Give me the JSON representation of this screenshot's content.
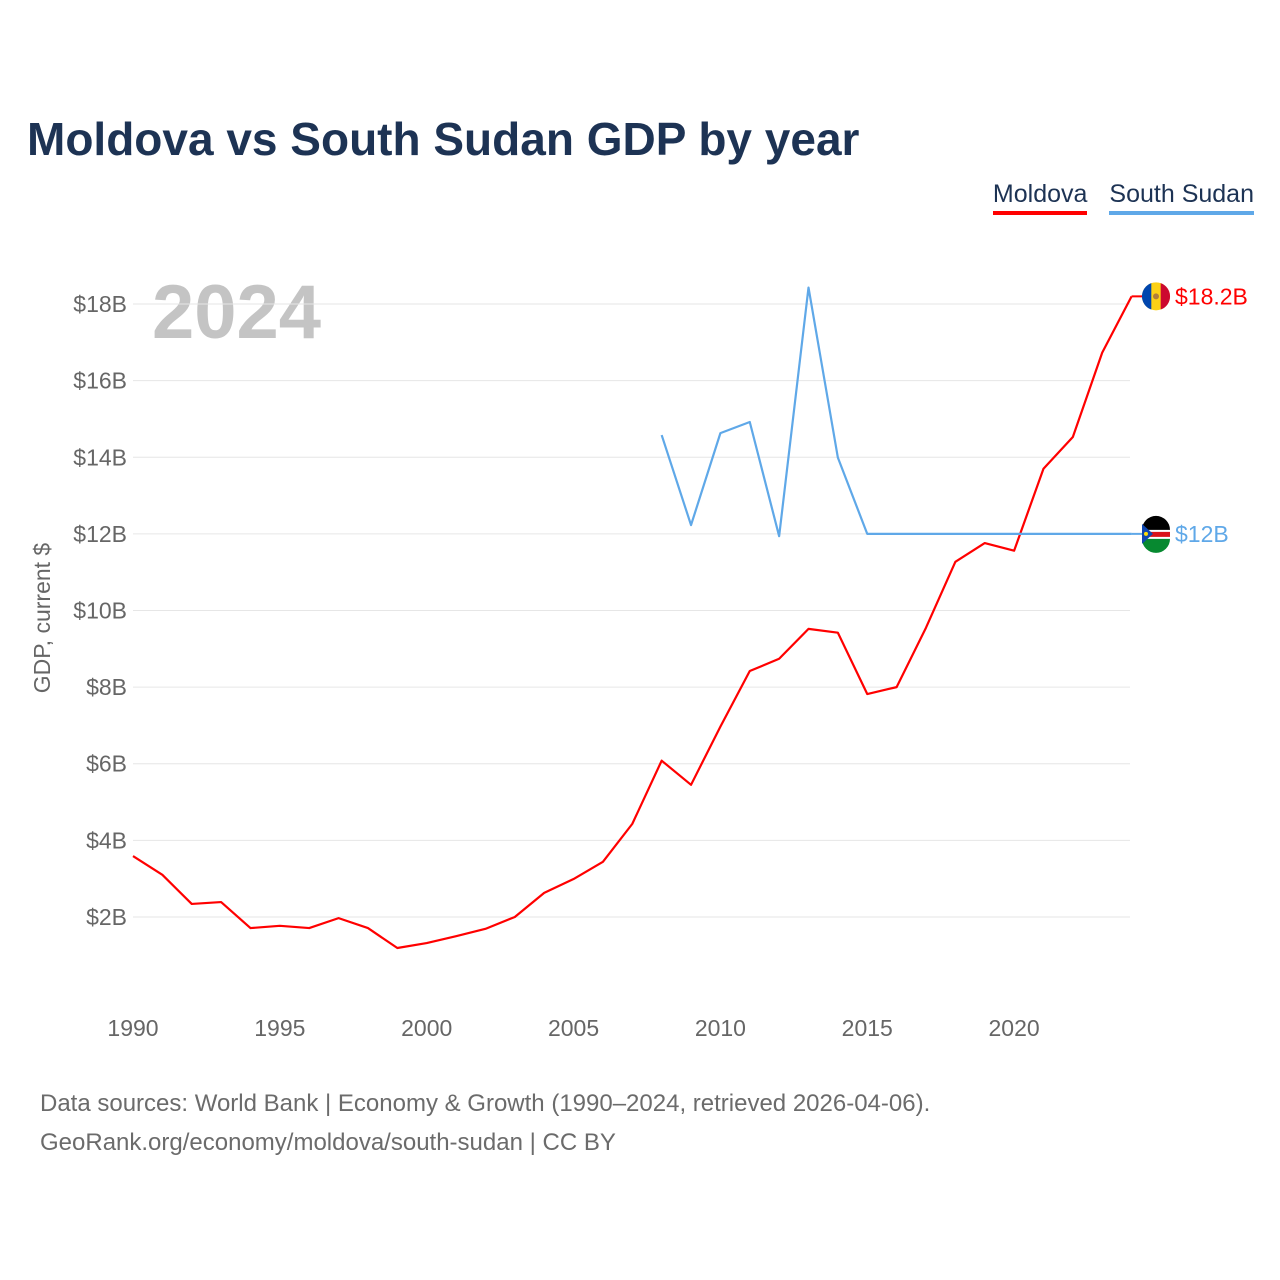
{
  "chart_data": {
    "type": "line",
    "title": "Moldova vs South Sudan GDP by year",
    "ylabel": "GDP, current $",
    "xlabel": "",
    "year_label": "2024",
    "xlim": [
      1990,
      2024
    ],
    "ylim": [
      0,
      19
    ],
    "x_ticks": [
      1990,
      1995,
      2000,
      2005,
      2010,
      2015,
      2020
    ],
    "y_ticks": [
      2,
      4,
      6,
      8,
      10,
      12,
      14,
      16,
      18
    ],
    "y_tick_labels": [
      "$2B",
      "$4B",
      "$6B",
      "$8B",
      "$10B",
      "$12B",
      "$14B",
      "$16B",
      "$18B"
    ],
    "grid": true,
    "legend_placement": "top-right",
    "series": [
      {
        "name": "Moldova",
        "color": "#ff0000",
        "end_label": "$18.2B",
        "x": [
          1990,
          1991,
          1992,
          1993,
          1994,
          1995,
          1996,
          1997,
          1998,
          1999,
          2000,
          2001,
          2002,
          2003,
          2004,
          2005,
          2006,
          2007,
          2008,
          2009,
          2010,
          2011,
          2012,
          2013,
          2014,
          2015,
          2016,
          2017,
          2018,
          2019,
          2020,
          2021,
          2022,
          2023,
          2024
        ],
        "values": [
          3.59,
          3.1,
          2.34,
          2.39,
          1.71,
          1.77,
          1.71,
          1.97,
          1.71,
          1.19,
          1.32,
          1.5,
          1.69,
          2.0,
          2.63,
          2.99,
          3.44,
          4.43,
          6.08,
          5.45,
          6.97,
          8.42,
          8.74,
          9.52,
          9.42,
          7.82,
          8.0,
          9.55,
          11.27,
          11.76,
          11.56,
          13.7,
          14.53,
          16.73,
          18.2
        ]
      },
      {
        "name": "South Sudan",
        "color": "#5fa8e8",
        "end_label": "$12B",
        "x": [
          2008,
          2009,
          2010,
          2011,
          2012,
          2013,
          2014,
          2015,
          2016,
          2017,
          2018,
          2019,
          2020,
          2021,
          2022,
          2023,
          2024
        ],
        "values": [
          14.58,
          12.23,
          14.63,
          14.92,
          11.94,
          18.43,
          13.99,
          12.0,
          12.0,
          12.0,
          12.0,
          12.0,
          12.0,
          12.0,
          12.0,
          12.0,
          12.0
        ]
      }
    ]
  },
  "footer": {
    "line1": "Data sources: World Bank | Economy & Growth (1990–2024, retrieved 2026-04-06).",
    "line2": "GeoRank.org/economy/moldova/south-sudan | CC BY"
  }
}
